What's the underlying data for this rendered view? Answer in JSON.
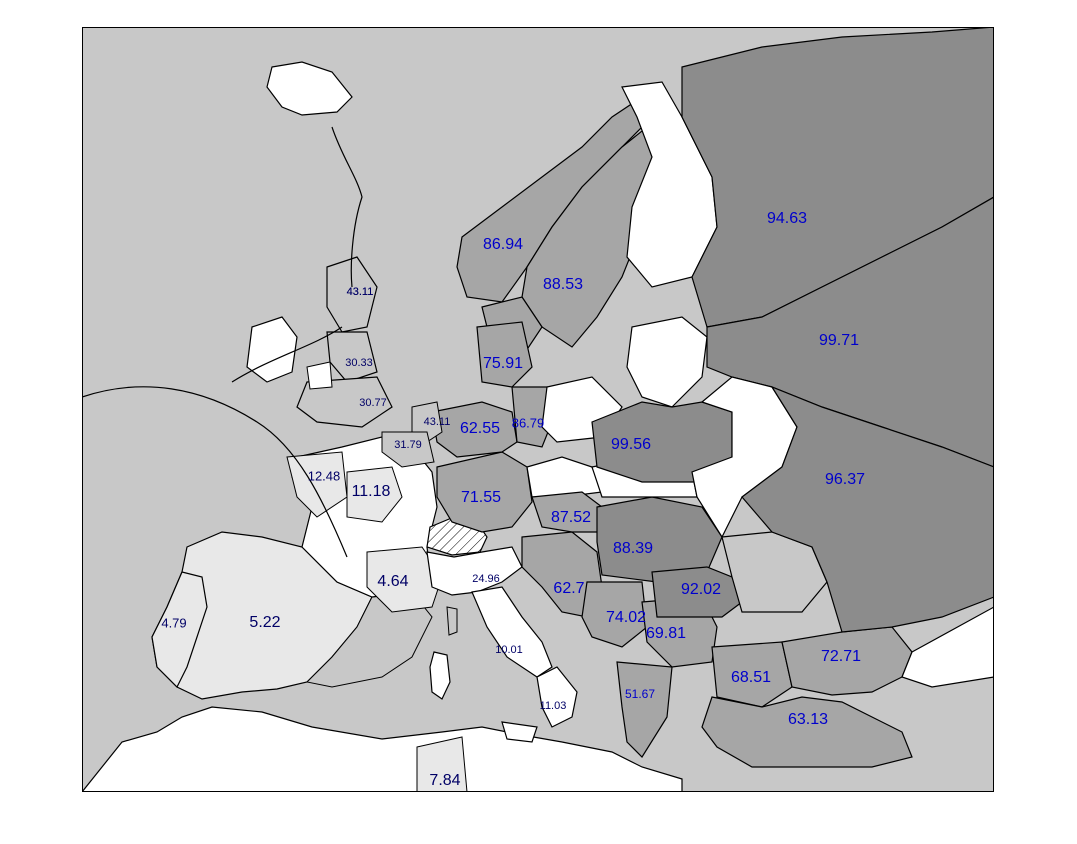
{
  "map": {
    "colors": {
      "sea": "#c8c8c8",
      "white": "#ffffff",
      "very_light": "#e8e8e8",
      "light": "#c8c8c8",
      "medium": "#a6a6a6",
      "dark": "#8c8c8c",
      "label_blue": "#0000cc",
      "label_navy": "#000066"
    },
    "labels": [
      {
        "id": "label-iceland-region",
        "text": "43.11"
      },
      {
        "id": "label-norway",
        "text": "86.94"
      },
      {
        "id": "label-sweden",
        "text": "88.53"
      },
      {
        "id": "label-russia-north",
        "text": "94.63"
      },
      {
        "id": "label-russia-central",
        "text": "99.71"
      },
      {
        "id": "label-scotland",
        "text": "43.11"
      },
      {
        "id": "label-england-north",
        "text": "30.33"
      },
      {
        "id": "label-england-south",
        "text": "30.77"
      },
      {
        "id": "label-denmark",
        "text": "75.91"
      },
      {
        "id": "label-netherlands",
        "text": "43.11"
      },
      {
        "id": "label-germany-north",
        "text": "62.55"
      },
      {
        "id": "label-poland-west",
        "text": "86.79"
      },
      {
        "id": "label-belarus",
        "text": "99.56"
      },
      {
        "id": "label-belgium",
        "text": "31.79"
      },
      {
        "id": "label-brittany",
        "text": "12.48"
      },
      {
        "id": "label-france-north",
        "text": "11.18"
      },
      {
        "id": "label-germany-south",
        "text": "71.55"
      },
      {
        "id": "label-ukraine-east",
        "text": "96.37"
      },
      {
        "id": "label-austria",
        "text": "87.52"
      },
      {
        "id": "label-hungary",
        "text": "88.39"
      },
      {
        "id": "label-france-south",
        "text": "4.64"
      },
      {
        "id": "label-italy-north",
        "text": "24.96"
      },
      {
        "id": "label-croatia",
        "text": "62.7"
      },
      {
        "id": "label-transylvania",
        "text": "92.02"
      },
      {
        "id": "label-portugal",
        "text": "4.79"
      },
      {
        "id": "label-spain",
        "text": "5.22"
      },
      {
        "id": "label-bosnia",
        "text": "74.02"
      },
      {
        "id": "label-serbia",
        "text": "69.81"
      },
      {
        "id": "label-ukraine-south",
        "text": "72.71"
      },
      {
        "id": "label-italy-central",
        "text": "10.01"
      },
      {
        "id": "label-bulgaria",
        "text": "68.51"
      },
      {
        "id": "label-albania",
        "text": "51.67"
      },
      {
        "id": "label-italy-south",
        "text": "11.03"
      },
      {
        "id": "label-turkey",
        "text": "63.13"
      },
      {
        "id": "label-north-africa",
        "text": "7.84"
      }
    ]
  }
}
